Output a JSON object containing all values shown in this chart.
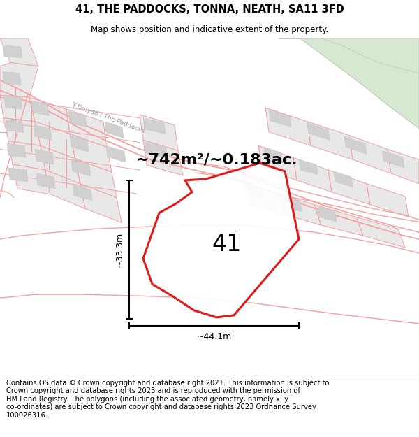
{
  "title": "41, THE PADDOCKS, TONNA, NEATH, SA11 3FD",
  "subtitle": "Map shows position and indicative extent of the property.",
  "footer": "Contains OS data © Crown copyright and database right 2021. This information is subject to\nCrown copyright and database rights 2023 and is reproduced with the permission of\nHM Land Registry. The polygons (including the associated geometry, namely x, y\nco-ordinates) are subject to Crown copyright and database rights 2023 Ordnance Survey\n100026316.",
  "area_text": "~742m²/~0.183ac.",
  "label_41": "41",
  "dim_vertical": "~33.3m",
  "dim_horizontal": "~44.1m",
  "map_bg": "#ffffff",
  "road_outline_color": "#f5a0a0",
  "parcel_fill": "#e8e8e8",
  "parcel_edge": "#d8b0b0",
  "green_fill": "#d6e8d0",
  "green_edge": "#c0c8b8",
  "plot_color": "#dd0000",
  "plot_fill": "#ffffff",
  "title_fontsize": 10.5,
  "subtitle_fontsize": 8.5,
  "footer_fontsize": 7.2,
  "area_fontsize": 16,
  "label_fontsize": 24,
  "dim_fontsize": 9
}
